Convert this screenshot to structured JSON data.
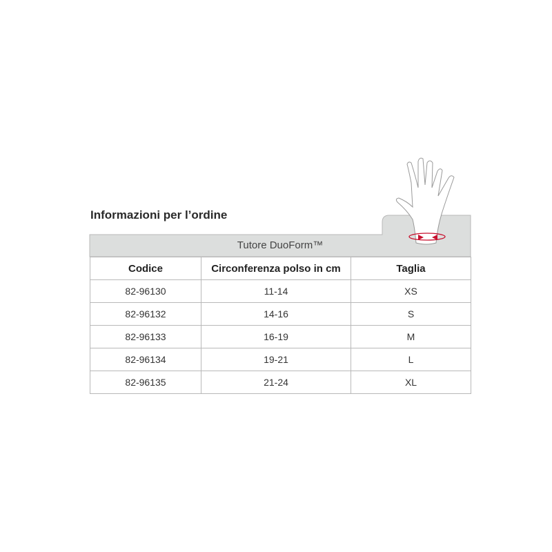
{
  "title": "Informazioni per l’ordine",
  "product": "Tutore DuoForm™",
  "icon": "hand-wrist-measure-icon",
  "colors": {
    "header_gray": "#dcdedd",
    "arrow_red": "#c8102e"
  },
  "columns": [
    "Codice",
    "Circonferenza polso in cm",
    "Taglia"
  ],
  "rows": [
    [
      "82-96130",
      "11-14",
      "XS"
    ],
    [
      "82-96132",
      "14-16",
      "S"
    ],
    [
      "82-96133",
      "16-19",
      "M"
    ],
    [
      "82-96134",
      "19-21",
      "L"
    ],
    [
      "82-96135",
      "21-24",
      "XL"
    ]
  ]
}
